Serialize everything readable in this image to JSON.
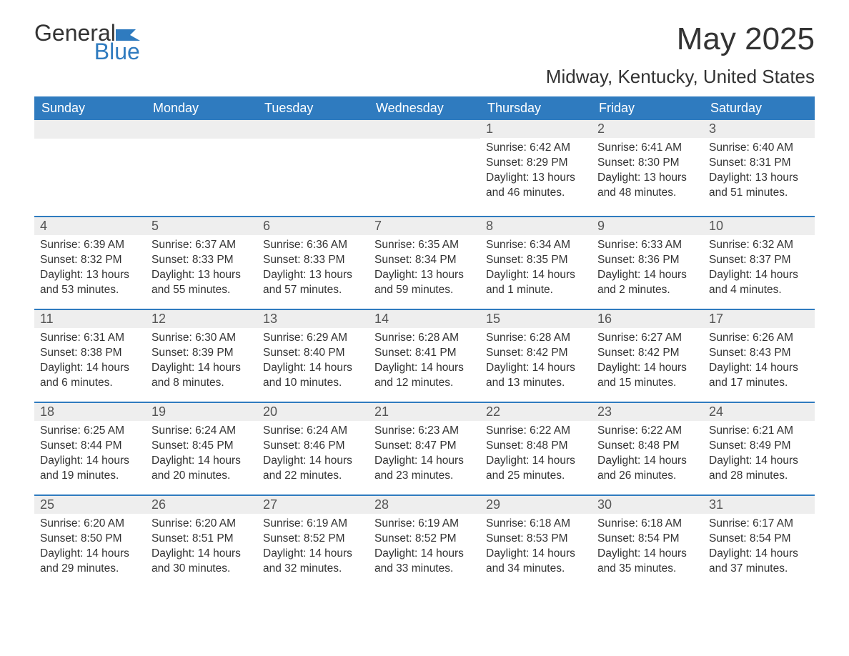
{
  "logo": {
    "text_main": "General",
    "text_accent": "Blue",
    "accent_color": "#2f7bbf"
  },
  "title": "May 2025",
  "location": "Midway, Kentucky, United States",
  "colors": {
    "header_bg": "#2f7bbf",
    "header_text": "#ffffff",
    "daynum_bg": "#eeeeee",
    "border_top": "#2f7bbf",
    "body_bg": "#ffffff",
    "text": "#333333"
  },
  "day_headers": [
    "Sunday",
    "Monday",
    "Tuesday",
    "Wednesday",
    "Thursday",
    "Friday",
    "Saturday"
  ],
  "weeks": [
    [
      null,
      null,
      null,
      null,
      {
        "n": "1",
        "sunrise": "Sunrise: 6:42 AM",
        "sunset": "Sunset: 8:29 PM",
        "daylight": "Daylight: 13 hours and 46 minutes."
      },
      {
        "n": "2",
        "sunrise": "Sunrise: 6:41 AM",
        "sunset": "Sunset: 8:30 PM",
        "daylight": "Daylight: 13 hours and 48 minutes."
      },
      {
        "n": "3",
        "sunrise": "Sunrise: 6:40 AM",
        "sunset": "Sunset: 8:31 PM",
        "daylight": "Daylight: 13 hours and 51 minutes."
      }
    ],
    [
      {
        "n": "4",
        "sunrise": "Sunrise: 6:39 AM",
        "sunset": "Sunset: 8:32 PM",
        "daylight": "Daylight: 13 hours and 53 minutes."
      },
      {
        "n": "5",
        "sunrise": "Sunrise: 6:37 AM",
        "sunset": "Sunset: 8:33 PM",
        "daylight": "Daylight: 13 hours and 55 minutes."
      },
      {
        "n": "6",
        "sunrise": "Sunrise: 6:36 AM",
        "sunset": "Sunset: 8:33 PM",
        "daylight": "Daylight: 13 hours and 57 minutes."
      },
      {
        "n": "7",
        "sunrise": "Sunrise: 6:35 AM",
        "sunset": "Sunset: 8:34 PM",
        "daylight": "Daylight: 13 hours and 59 minutes."
      },
      {
        "n": "8",
        "sunrise": "Sunrise: 6:34 AM",
        "sunset": "Sunset: 8:35 PM",
        "daylight": "Daylight: 14 hours and 1 minute."
      },
      {
        "n": "9",
        "sunrise": "Sunrise: 6:33 AM",
        "sunset": "Sunset: 8:36 PM",
        "daylight": "Daylight: 14 hours and 2 minutes."
      },
      {
        "n": "10",
        "sunrise": "Sunrise: 6:32 AM",
        "sunset": "Sunset: 8:37 PM",
        "daylight": "Daylight: 14 hours and 4 minutes."
      }
    ],
    [
      {
        "n": "11",
        "sunrise": "Sunrise: 6:31 AM",
        "sunset": "Sunset: 8:38 PM",
        "daylight": "Daylight: 14 hours and 6 minutes."
      },
      {
        "n": "12",
        "sunrise": "Sunrise: 6:30 AM",
        "sunset": "Sunset: 8:39 PM",
        "daylight": "Daylight: 14 hours and 8 minutes."
      },
      {
        "n": "13",
        "sunrise": "Sunrise: 6:29 AM",
        "sunset": "Sunset: 8:40 PM",
        "daylight": "Daylight: 14 hours and 10 minutes."
      },
      {
        "n": "14",
        "sunrise": "Sunrise: 6:28 AM",
        "sunset": "Sunset: 8:41 PM",
        "daylight": "Daylight: 14 hours and 12 minutes."
      },
      {
        "n": "15",
        "sunrise": "Sunrise: 6:28 AM",
        "sunset": "Sunset: 8:42 PM",
        "daylight": "Daylight: 14 hours and 13 minutes."
      },
      {
        "n": "16",
        "sunrise": "Sunrise: 6:27 AM",
        "sunset": "Sunset: 8:42 PM",
        "daylight": "Daylight: 14 hours and 15 minutes."
      },
      {
        "n": "17",
        "sunrise": "Sunrise: 6:26 AM",
        "sunset": "Sunset: 8:43 PM",
        "daylight": "Daylight: 14 hours and 17 minutes."
      }
    ],
    [
      {
        "n": "18",
        "sunrise": "Sunrise: 6:25 AM",
        "sunset": "Sunset: 8:44 PM",
        "daylight": "Daylight: 14 hours and 19 minutes."
      },
      {
        "n": "19",
        "sunrise": "Sunrise: 6:24 AM",
        "sunset": "Sunset: 8:45 PM",
        "daylight": "Daylight: 14 hours and 20 minutes."
      },
      {
        "n": "20",
        "sunrise": "Sunrise: 6:24 AM",
        "sunset": "Sunset: 8:46 PM",
        "daylight": "Daylight: 14 hours and 22 minutes."
      },
      {
        "n": "21",
        "sunrise": "Sunrise: 6:23 AM",
        "sunset": "Sunset: 8:47 PM",
        "daylight": "Daylight: 14 hours and 23 minutes."
      },
      {
        "n": "22",
        "sunrise": "Sunrise: 6:22 AM",
        "sunset": "Sunset: 8:48 PM",
        "daylight": "Daylight: 14 hours and 25 minutes."
      },
      {
        "n": "23",
        "sunrise": "Sunrise: 6:22 AM",
        "sunset": "Sunset: 8:48 PM",
        "daylight": "Daylight: 14 hours and 26 minutes."
      },
      {
        "n": "24",
        "sunrise": "Sunrise: 6:21 AM",
        "sunset": "Sunset: 8:49 PM",
        "daylight": "Daylight: 14 hours and 28 minutes."
      }
    ],
    [
      {
        "n": "25",
        "sunrise": "Sunrise: 6:20 AM",
        "sunset": "Sunset: 8:50 PM",
        "daylight": "Daylight: 14 hours and 29 minutes."
      },
      {
        "n": "26",
        "sunrise": "Sunrise: 6:20 AM",
        "sunset": "Sunset: 8:51 PM",
        "daylight": "Daylight: 14 hours and 30 minutes."
      },
      {
        "n": "27",
        "sunrise": "Sunrise: 6:19 AM",
        "sunset": "Sunset: 8:52 PM",
        "daylight": "Daylight: 14 hours and 32 minutes."
      },
      {
        "n": "28",
        "sunrise": "Sunrise: 6:19 AM",
        "sunset": "Sunset: 8:52 PM",
        "daylight": "Daylight: 14 hours and 33 minutes."
      },
      {
        "n": "29",
        "sunrise": "Sunrise: 6:18 AM",
        "sunset": "Sunset: 8:53 PM",
        "daylight": "Daylight: 14 hours and 34 minutes."
      },
      {
        "n": "30",
        "sunrise": "Sunrise: 6:18 AM",
        "sunset": "Sunset: 8:54 PM",
        "daylight": "Daylight: 14 hours and 35 minutes."
      },
      {
        "n": "31",
        "sunrise": "Sunrise: 6:17 AM",
        "sunset": "Sunset: 8:54 PM",
        "daylight": "Daylight: 14 hours and 37 minutes."
      }
    ]
  ]
}
